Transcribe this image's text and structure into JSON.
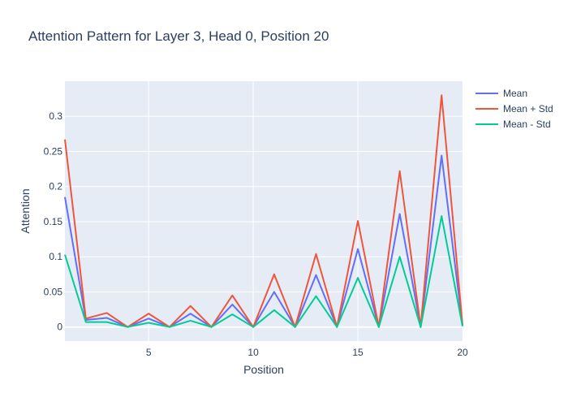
{
  "chart_data": {
    "type": "line",
    "title": "Attention Pattern for Layer 3, Head 0, Position 20",
    "xlabel": "Position",
    "ylabel": "Attention",
    "xlim": [
      1,
      20
    ],
    "ylim": [
      -0.02,
      0.35
    ],
    "x_ticks": [
      5,
      10,
      15,
      20
    ],
    "y_ticks": [
      0,
      0.05,
      0.1,
      0.15,
      0.2,
      0.25,
      0.3
    ],
    "y_tick_labels": [
      "0",
      "0.05",
      "0.1",
      "0.15",
      "0.2",
      "0.25",
      "0.3"
    ],
    "x": [
      1,
      2,
      3,
      4,
      5,
      6,
      7,
      8,
      9,
      10,
      11,
      12,
      13,
      14,
      15,
      16,
      17,
      18,
      19,
      20
    ],
    "grid": true,
    "legend_position": "top-right",
    "series": [
      {
        "name": "Mean",
        "color": "#636efa",
        "values": [
          0.185,
          0.01,
          0.013,
          0.0,
          0.012,
          0.0,
          0.019,
          0.0,
          0.032,
          0.0,
          0.05,
          0.0,
          0.074,
          0.0,
          0.111,
          0.0,
          0.161,
          0.0,
          0.244,
          0.002
        ]
      },
      {
        "name": "Mean + Std",
        "color": "#ef553b",
        "values": [
          0.267,
          0.012,
          0.02,
          0.0,
          0.019,
          0.0,
          0.03,
          0.0,
          0.045,
          0.0,
          0.075,
          0.0,
          0.104,
          0.0,
          0.151,
          0.0,
          0.222,
          0.0,
          0.33,
          0.003
        ]
      },
      {
        "name": "Mean - Std",
        "color": "#00cc96",
        "values": [
          0.103,
          0.007,
          0.007,
          0.0,
          0.006,
          0.0,
          0.009,
          0.0,
          0.018,
          0.0,
          0.024,
          0.0,
          0.044,
          0.0,
          0.07,
          0.0,
          0.1,
          0.0,
          0.158,
          0.001
        ]
      }
    ]
  }
}
